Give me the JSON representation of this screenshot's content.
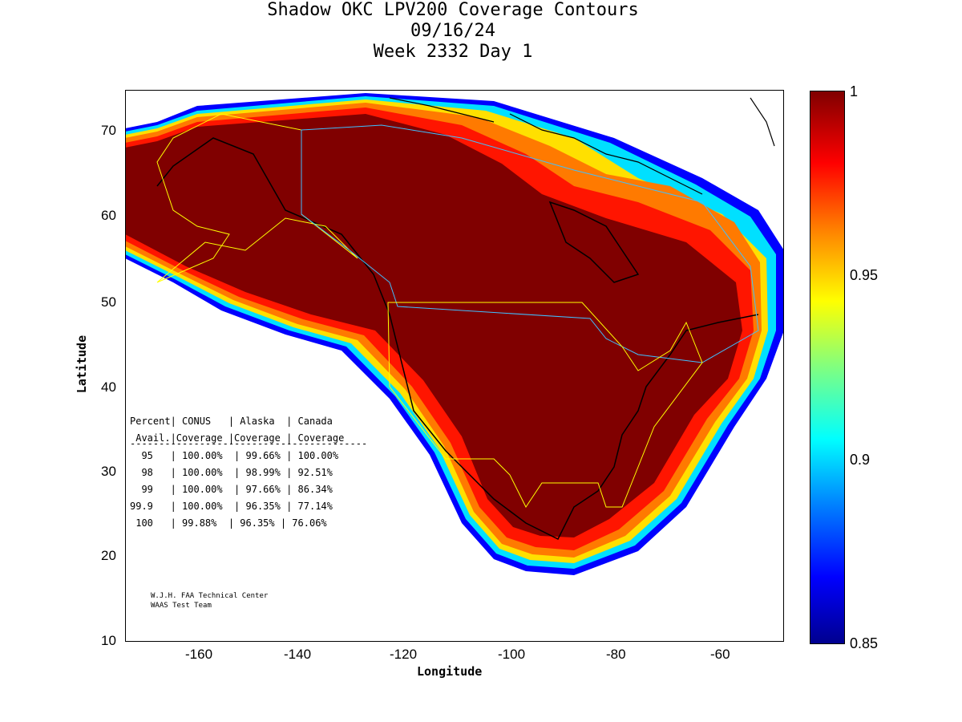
{
  "title": {
    "line1": "Shadow OKC LPV200 Coverage Contours",
    "line2": "09/16/24",
    "line3": "Week 2332 Day 1"
  },
  "axes": {
    "xlabel": "Longitude",
    "ylabel": "Latitude",
    "xticks": [
      "-160",
      "-140",
      "-120",
      "-100",
      "-80",
      "-60"
    ],
    "yticks": [
      "70",
      "60",
      "50",
      "40",
      "30",
      "20",
      "10"
    ]
  },
  "colorbar": {
    "labels": [
      "1",
      "0.95",
      "0.9",
      "0.85"
    ],
    "colors": [
      "#800000",
      "#ff0000",
      "#ff8000",
      "#ffff00",
      "#80ff80",
      "#00ffff",
      "#0080ff",
      "#0000ff",
      "#00008f"
    ]
  },
  "table": {
    "header1": "Percent| CONUS   | Alaska  | Canada",
    "header2": " Avail.|Coverage |Coverage | Coverage",
    "divider": "-----------------------------------------",
    "rows": [
      "  95   | 100.00%  | 99.66% | 100.00%",
      "  98   | 100.00%  | 98.99% | 92.51%",
      "  99   | 100.00%  | 97.66% | 86.34%",
      "99.9   | 100.00%  | 96.35% | 77.14%",
      " 100   | 99.88%  | 96.35% | 76.06%"
    ]
  },
  "credits": {
    "line1": "W.J.H. FAA Technical Center",
    "line2": "WAAS Test Team"
  }
}
